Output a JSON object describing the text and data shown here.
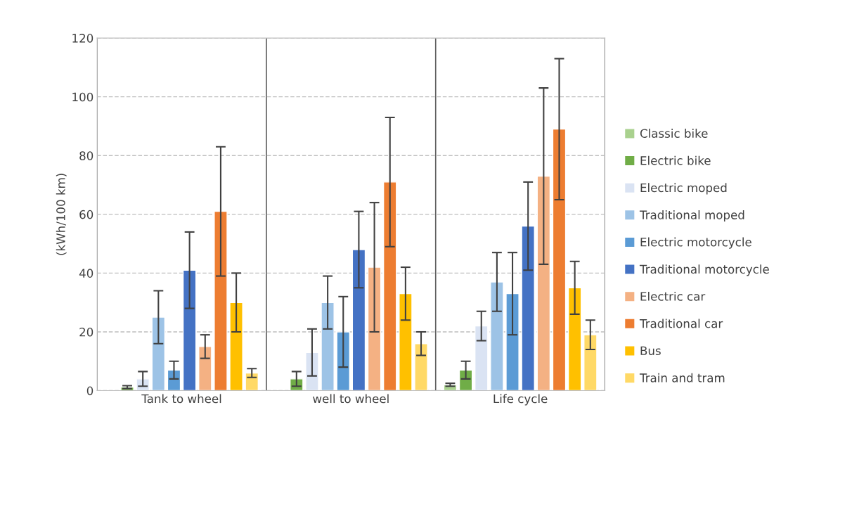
{
  "chart_data": {
    "type": "bar",
    "ylabel": "(kWh/100 km)",
    "categories": [
      "Tank to wheel",
      "well to wheel",
      "Life cycle"
    ],
    "series": [
      {
        "name": "Classic bike",
        "color": "#a9d18e",
        "values": [
          null,
          null,
          2
        ],
        "errors": [
          null,
          null,
          0.5
        ]
      },
      {
        "name": "Electric bike",
        "color": "#70ad47",
        "values": [
          1.2,
          4,
          7
        ],
        "errors": [
          0.5,
          2.5,
          3
        ]
      },
      {
        "name": "Electric moped",
        "color": "#dae3f3",
        "values": [
          4,
          13,
          22
        ],
        "errors": [
          2.5,
          8,
          5
        ]
      },
      {
        "name": "Traditional moped",
        "color": "#9dc3e6",
        "values": [
          25,
          30,
          37
        ],
        "errors": [
          9,
          9,
          10
        ]
      },
      {
        "name": "Electric motorcycle",
        "color": "#5b9bd5",
        "values": [
          7,
          20,
          33
        ],
        "errors": [
          3,
          12,
          14
        ]
      },
      {
        "name": "Traditional motorcycle",
        "color": "#4472c4",
        "values": [
          41,
          48,
          56
        ],
        "errors": [
          13,
          13,
          15
        ]
      },
      {
        "name": "Electric car",
        "color": "#f4b183",
        "values": [
          15,
          42,
          73
        ],
        "errors": [
          4,
          22,
          30
        ]
      },
      {
        "name": "Traditional car",
        "color": "#ed7d31",
        "values": [
          61,
          71,
          89
        ],
        "errors": [
          22,
          22,
          24
        ]
      },
      {
        "name": "Bus",
        "color": "#ffc000",
        "values": [
          30,
          33,
          35
        ],
        "errors": [
          10,
          9,
          9
        ]
      },
      {
        "name": "Train and tram",
        "color": "#ffd966",
        "values": [
          6,
          16,
          19
        ],
        "errors": [
          1.5,
          4,
          5
        ]
      }
    ],
    "ylim": [
      0,
      120
    ],
    "yticks": [
      0,
      20,
      40,
      60,
      80,
      100,
      120
    ],
    "grid": true,
    "legend": "right"
  }
}
